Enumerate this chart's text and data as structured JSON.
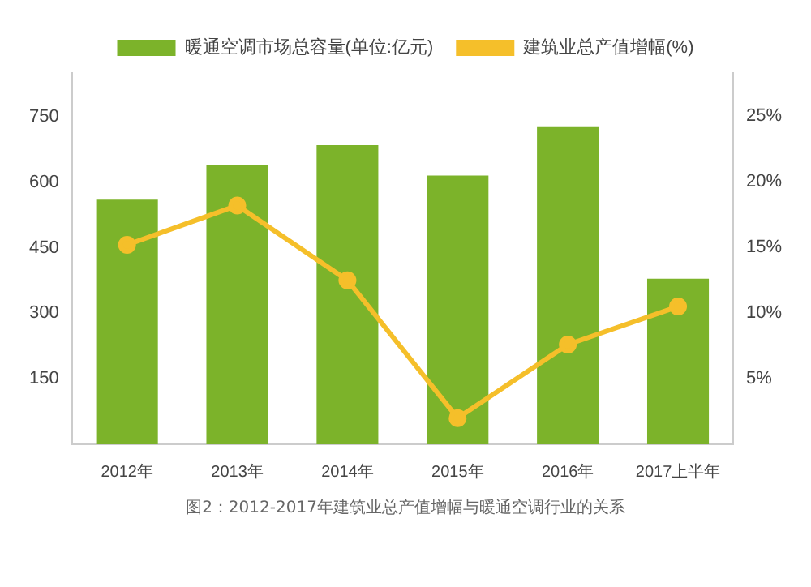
{
  "chart_data": {
    "type": "bar",
    "categories": [
      "2012年",
      "2013年",
      "2014年",
      "2015年",
      "2016年",
      "2017上半年"
    ],
    "series": [
      {
        "name": "暖通空调市场总容量(单位:亿元)",
        "color": "#7cb32a",
        "values": [
          560,
          640,
          685,
          615,
          726,
          379
        ]
      },
      {
        "name": "建筑业总产值增幅(%)",
        "type": "line",
        "axis": "y2",
        "color": "#f5bf2a",
        "values": [
          15.2,
          18.2,
          12.5,
          2.0,
          7.6,
          10.5
        ]
      }
    ],
    "ylim": [
      0,
      850
    ],
    "yticks": [
      150,
      300,
      450,
      600,
      750
    ],
    "y2lim": [
      0,
      28.3
    ],
    "y2ticks": [
      {
        "value": 5,
        "label": "5%"
      },
      {
        "value": 10,
        "label": "10%"
      },
      {
        "value": 15,
        "label": "15%"
      },
      {
        "value": 20,
        "label": "20%"
      },
      {
        "value": 25,
        "label": "25%"
      }
    ],
    "grid": false,
    "legend": "top",
    "marker": "circle",
    "line_style": "solid",
    "annotations": [
      "图2：2012-2017年建筑业总产值增幅与暖通空调行业的关系"
    ]
  }
}
